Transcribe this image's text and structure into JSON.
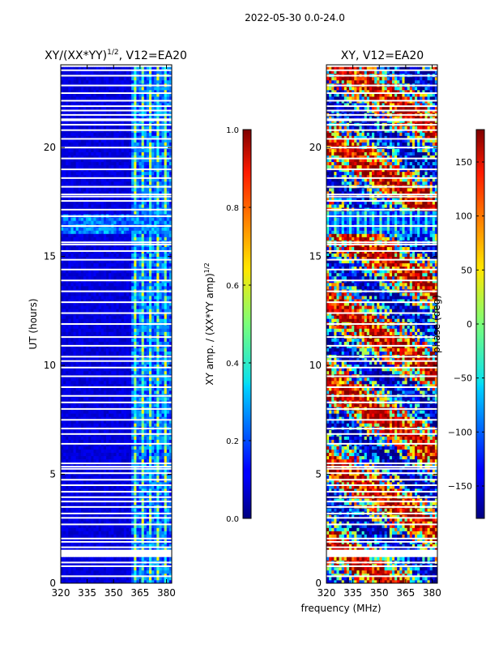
{
  "suptitle": "2022-05-30 0.0-24.0",
  "xlabel_shared": "frequency (MHz)",
  "chart_data": [
    {
      "type": "heatmap",
      "title_main": "XY/(XX*YY)",
      "title_sup": "1/2",
      "title_tail": ", V12=EA20",
      "ylabel": "UT (hours)",
      "xlim": [
        320,
        383
      ],
      "ylim": [
        0,
        23.8
      ],
      "xticks": [
        320,
        335,
        350,
        365,
        380
      ],
      "yticks": [
        0,
        5,
        10,
        15,
        20
      ],
      "colorbar": {
        "label_main": "XY amp. / (XX*YY amp)",
        "label_sup": "1/2",
        "range": [
          0.0,
          1.0
        ],
        "ticks": [
          "0.0",
          "0.2",
          "0.4",
          "0.6",
          "0.8",
          "1.0"
        ],
        "colormap": "jet"
      }
    },
    {
      "type": "heatmap",
      "title_main": "XY, V12=EA20",
      "ylabel": "",
      "xlim": [
        320,
        383
      ],
      "ylim": [
        0,
        23.8
      ],
      "xticks": [
        320,
        335,
        350,
        365,
        380
      ],
      "yticks": [
        0,
        5,
        10,
        15,
        20
      ],
      "colorbar": {
        "label_main": "phase (deg)",
        "range": [
          -180,
          180
        ],
        "ticks": [
          "150",
          "100",
          "50",
          "0",
          "−50",
          "−100",
          "−150"
        ],
        "colormap": "jet"
      }
    }
  ],
  "flagged_rows_ut": [
    0.32,
    0.78,
    0.95,
    1.5,
    1.65,
    1.9,
    2.05,
    2.7,
    3.0,
    3.2,
    3.5,
    3.75,
    3.95,
    4.2,
    4.5,
    4.75,
    5.05,
    5.25,
    5.35,
    5.5,
    6.4,
    6.85,
    7.1,
    7.5,
    8.0,
    8.3,
    8.6,
    9.0,
    9.5,
    9.9,
    10.2,
    10.4,
    10.9,
    11.3,
    11.9,
    12.4,
    12.9,
    13.4,
    13.9,
    14.4,
    14.85,
    15.25,
    15.55,
    15.65,
    16.4,
    16.85,
    17.15,
    17.55,
    17.75,
    17.85,
    18.2,
    18.6,
    19.0,
    19.5,
    20.0,
    20.4,
    20.8,
    21.05,
    21.25,
    21.3,
    21.5,
    21.7,
    21.9,
    22.15,
    22.5,
    22.85,
    23.3,
    23.55
  ]
}
